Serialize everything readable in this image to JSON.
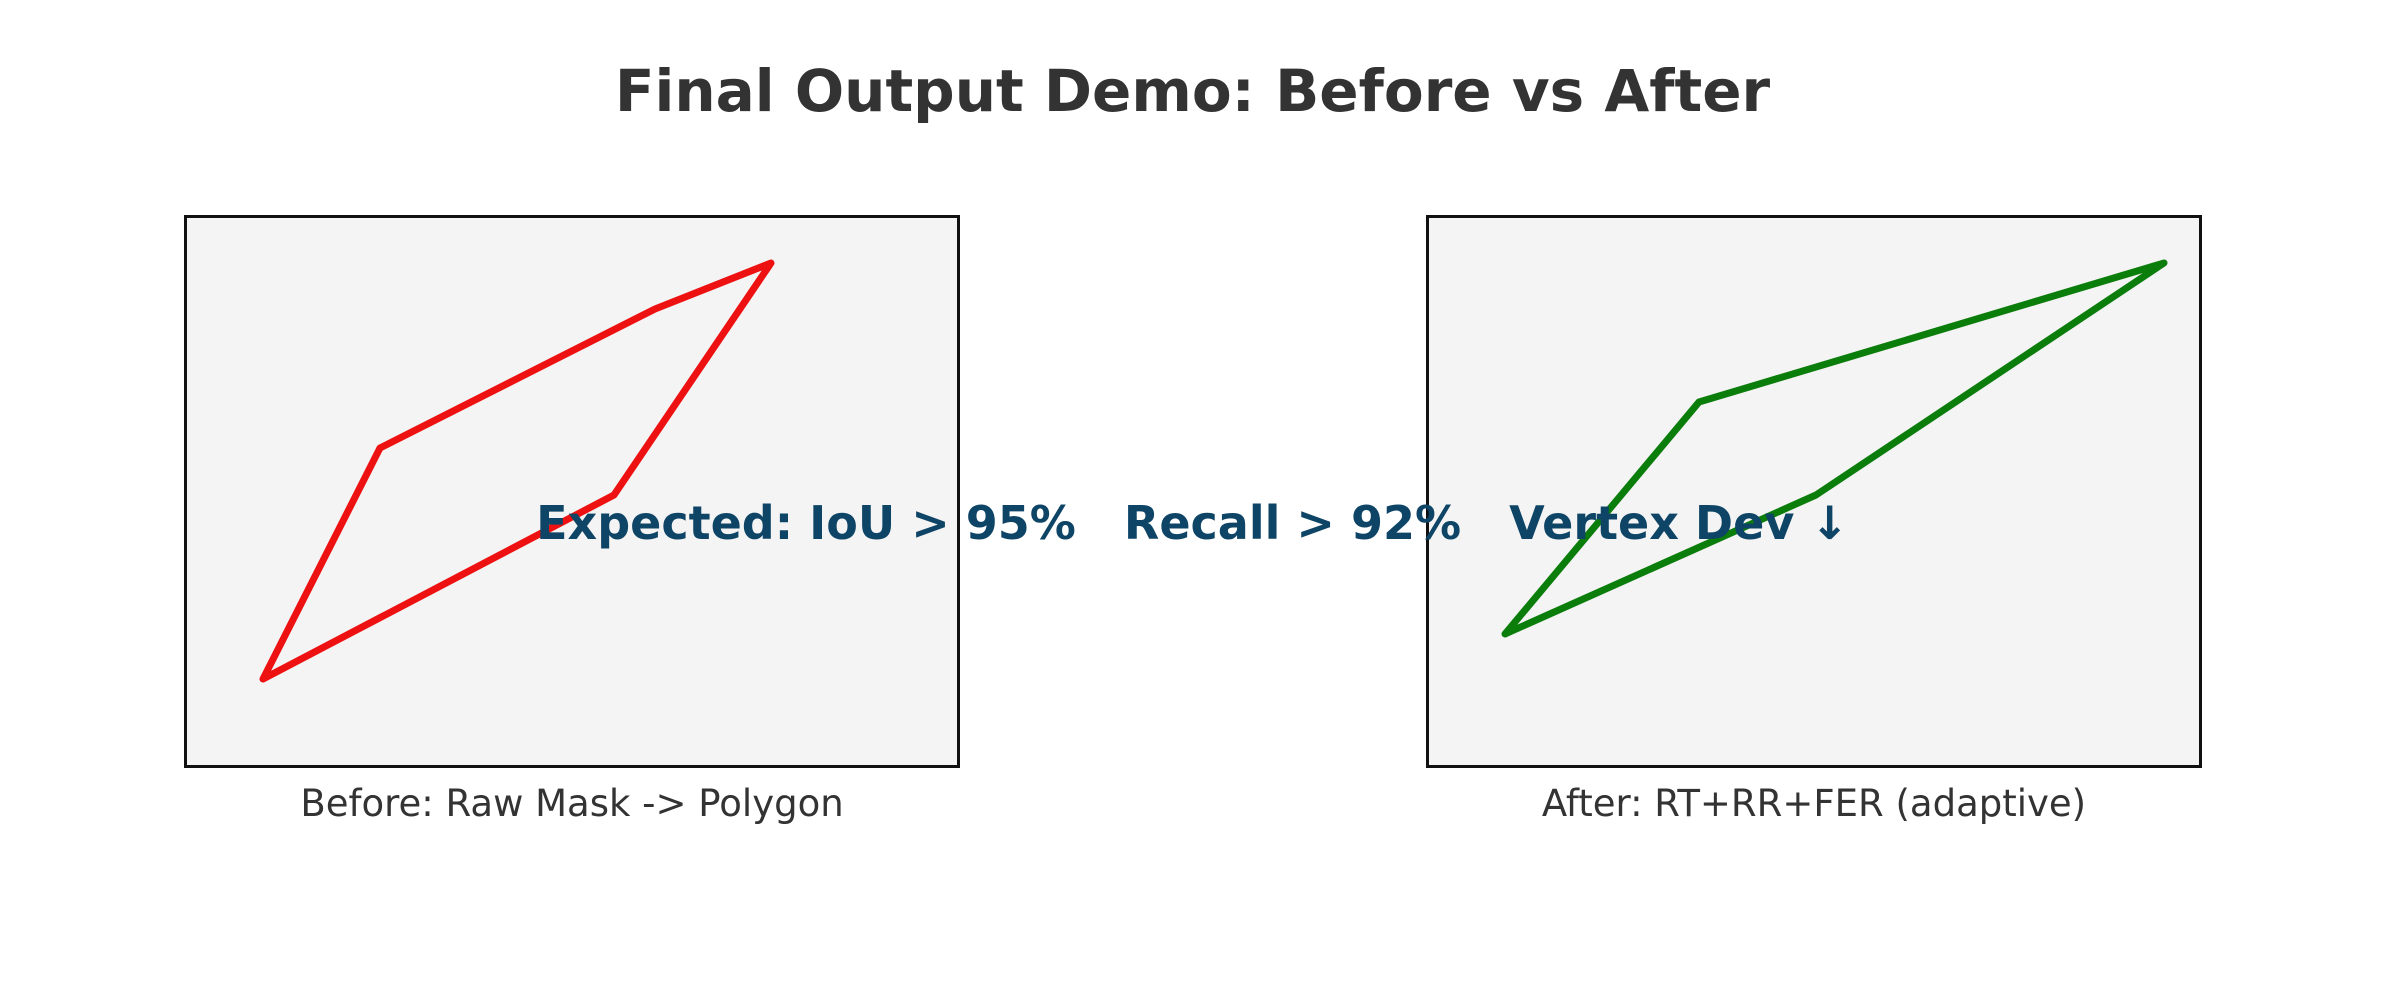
{
  "title": "Final Output Demo: Before vs After",
  "panels": {
    "before": {
      "caption": "Before: Raw Mask -> Polygon",
      "stroke_color": "#ee1111"
    },
    "after": {
      "caption": "After: RT+RR+FER (adaptive)",
      "stroke_color": "#0b7d0b"
    }
  },
  "metrics_text": "Expected: IoU > 95%   Recall > 92%   Vertex Dev ↓"
}
